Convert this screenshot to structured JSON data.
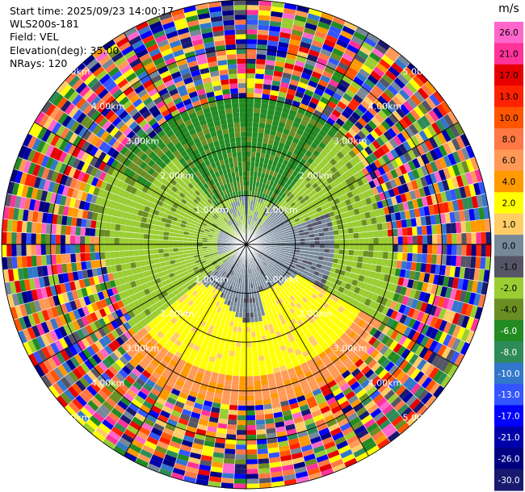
{
  "info": {
    "start_time": "Start time: 2025/09/23 14:00:17",
    "instrument": "WLS200s-181",
    "field": "Field: VEL",
    "elevation": "Elevation(deg): 35.00",
    "nrays": "NRays: 120"
  },
  "chart_data": {
    "type": "heatmap",
    "projection": "polar-ppi",
    "field": "VEL",
    "units": "m/s",
    "nrays": 120,
    "elevation_deg": 35.0,
    "range_rings_km": [
      1.0,
      2.0,
      3.0,
      4.0,
      5.0
    ],
    "ring_labels": [
      "1.00km",
      "2.00km",
      "3.00km",
      "4.00km",
      "5.00km"
    ],
    "range_max_km": 5.0,
    "colorbar": {
      "title": "m/s",
      "tick_labels": [
        "26.0",
        "21.0",
        "17.0",
        "13.0",
        "10.0",
        "8.0",
        "6.0",
        "4.0",
        "2.0",
        "1.0",
        "0.0",
        "-1.0",
        "-2.0",
        "-4.0",
        "-6.0",
        "-8.0",
        "-10.0",
        "-13.0",
        "-17.0",
        "-21.0",
        "-26.0",
        "-30.0"
      ],
      "colors": [
        "#ff66cc",
        "#ff3399",
        "#e60000",
        "#ff2200",
        "#ff5500",
        "#ff7744",
        "#ff9955",
        "#ff9900",
        "#ffff00",
        "#ffcc66",
        "#778899",
        "#555566",
        "#9acd32",
        "#6b8e23",
        "#228b22",
        "#2e8b57",
        "#3377cc",
        "#3355ff",
        "#0000ff",
        "#0000aa",
        "#000080",
        "#191970"
      ]
    },
    "regions": [
      {
        "name": "near-zero",
        "value_ms": 0.0,
        "az_range_deg": [
          0,
          360
        ],
        "range_km": [
          0,
          1.0
        ]
      },
      {
        "name": "approaching-green",
        "value_ms": -4.0,
        "az_range_deg": [
          320,
          40
        ],
        "range_km": [
          1.0,
          3.0
        ]
      },
      {
        "name": "approaching-light",
        "value_ms": -1.5,
        "az_range_deg": [
          230,
          330
        ],
        "range_km": [
          0.3,
          3.0
        ]
      },
      {
        "name": "receding-yellow",
        "value_ms": 3.0,
        "az_range_deg": [
          120,
          250
        ],
        "range_km": [
          1.2,
          2.8
        ]
      },
      {
        "name": "receding-orange",
        "value_ms": 5.0,
        "az_range_deg": [
          150,
          220
        ],
        "range_km": [
          2.8,
          3.4
        ]
      },
      {
        "name": "noise",
        "value_ms": null,
        "az_range_deg": [
          0,
          360
        ],
        "range_km": [
          3.0,
          5.0
        ]
      }
    ]
  }
}
